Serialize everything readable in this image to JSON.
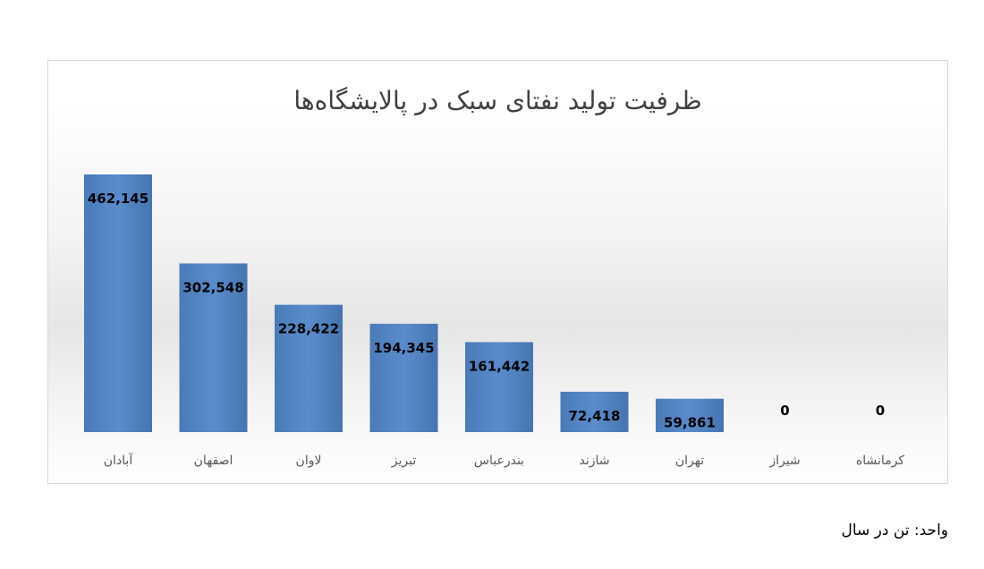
{
  "chart_data": {
    "type": "bar",
    "title": "ظرفیت تولید نفتای سبک در پالایشگاه‌ها",
    "categories": [
      "آبادان",
      "اصفهان",
      "لاوان",
      "تبریز",
      "بندرعباس",
      "شازند",
      "تهران",
      "شیراز",
      "کرمانشاه"
    ],
    "values": [
      462145,
      302548,
      228422,
      194345,
      161442,
      72418,
      59861,
      0,
      0
    ],
    "value_labels": [
      "462,145",
      "302,548",
      "228,422",
      "194,345",
      "161,442",
      "72,418",
      "59,861",
      "0",
      "0"
    ],
    "xlabel": "",
    "ylabel": "",
    "ylim": [
      0,
      462145
    ],
    "grid": false,
    "legend": "none",
    "bar_color": "#4f81bd",
    "label_color": "#000000",
    "category_label_color": "#595959"
  },
  "unit_note": "واحد: تن در سال"
}
